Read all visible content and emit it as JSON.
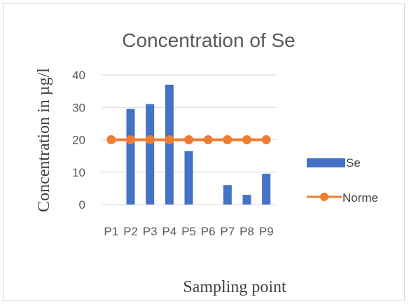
{
  "chart_data": {
    "type": "bar",
    "title": "Concentration of Se",
    "xlabel": "Sampling point",
    "ylabel": "Concentration in µg/l",
    "categories": [
      "P1",
      "P2",
      "P3",
      "P4",
      "P5",
      "P6",
      "P7",
      "P8",
      "P9"
    ],
    "series": [
      {
        "name": "Se",
        "type": "bar",
        "color": "#4472c4",
        "values": [
          0,
          29.5,
          31,
          37,
          16.5,
          0,
          6,
          3,
          9.5
        ]
      },
      {
        "name": "Norme",
        "type": "line",
        "color": "#ed7d31",
        "values": [
          20,
          20,
          20,
          20,
          20,
          20,
          20,
          20,
          20
        ]
      }
    ],
    "ylim": [
      0,
      40
    ],
    "yticks": [
      0,
      10,
      20,
      30,
      40
    ],
    "grid": true,
    "legend": "right"
  }
}
